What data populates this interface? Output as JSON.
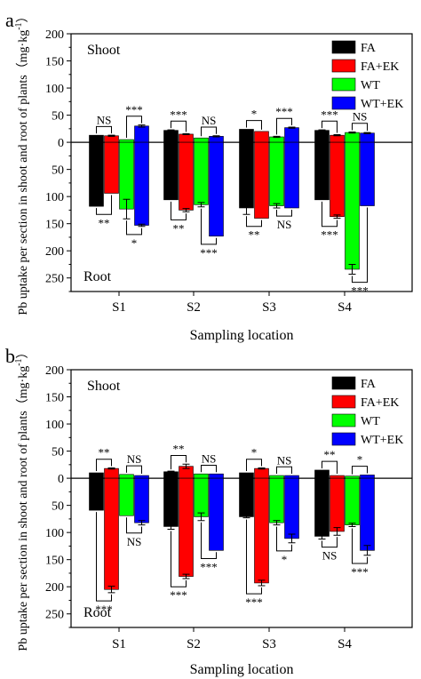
{
  "chart_data": [
    {
      "type": "bar",
      "panel_label": "a",
      "title": "",
      "xlabel": "Sampling location",
      "ylabel": "Pb uptake per section in shoot and root of plants（mg·kg",
      "ylabel_sup": "-1",
      "ylabel_tail": "）",
      "ylim": [
        -275,
        200
      ],
      "ytick_values": [
        200,
        150,
        100,
        50,
        0,
        -50,
        -100,
        -150,
        -200,
        -250
      ],
      "ytick_labels": [
        "200",
        "150",
        "100",
        "50",
        "0",
        "50",
        "100",
        "150",
        "200",
        "250"
      ],
      "shoot_label": "Shoot",
      "root_label": "Root",
      "legend_position": "top-right",
      "categories": [
        "S1",
        "S2",
        "S3",
        "S4"
      ],
      "series": [
        {
          "name": "FA",
          "color": "#000000",
          "shoot": [
            13,
            22,
            24,
            22
          ],
          "shoot_err": [
            0,
            1,
            0,
            1
          ],
          "root": [
            118,
            106,
            121,
            106
          ],
          "root_err": [
            0,
            0,
            12,
            0
          ]
        },
        {
          "name": "FA+EK",
          "color": "#ff0000",
          "shoot": [
            12,
            15,
            20,
            13
          ],
          "shoot_err": [
            1,
            1,
            0,
            1
          ],
          "root": [
            94,
            125,
            140,
            137
          ],
          "root_err": [
            0,
            3,
            0,
            3
          ]
        },
        {
          "name": "WT",
          "color": "#00ff00",
          "shoot": [
            5,
            8,
            10,
            18
          ],
          "shoot_err": [
            0,
            0,
            1,
            1
          ],
          "root": [
            123,
            115,
            117,
            234
          ],
          "root_err": [
            18,
            4,
            4,
            9
          ]
        },
        {
          "name": "WT+EK",
          "color": "#0000ff",
          "shoot": [
            30,
            11,
            27,
            17
          ],
          "shoot_err": [
            2,
            1,
            1,
            1
          ],
          "root": [
            153,
            173,
            121,
            117
          ],
          "root_err": [
            2,
            0,
            0,
            0
          ]
        }
      ],
      "shoot_significance": [
        {
          "category": "S1",
          "pair": [
            0,
            1
          ],
          "label": "NS"
        },
        {
          "category": "S1",
          "pair": [
            2,
            3
          ],
          "label": "***"
        },
        {
          "category": "S2",
          "pair": [
            0,
            1
          ],
          "label": "***"
        },
        {
          "category": "S2",
          "pair": [
            2,
            3
          ],
          "label": "NS"
        },
        {
          "category": "S3",
          "pair": [
            0,
            1
          ],
          "label": "*"
        },
        {
          "category": "S3",
          "pair": [
            2,
            3
          ],
          "label": "***"
        },
        {
          "category": "S4",
          "pair": [
            0,
            1
          ],
          "label": "***"
        },
        {
          "category": "S4",
          "pair": [
            2,
            3
          ],
          "label": "NS"
        }
      ],
      "root_significance": [
        {
          "category": "S1",
          "pair": [
            0,
            1
          ],
          "label": "**"
        },
        {
          "category": "S1",
          "pair": [
            2,
            3
          ],
          "label": "*"
        },
        {
          "category": "S2",
          "pair": [
            0,
            1
          ],
          "label": "**"
        },
        {
          "category": "S2",
          "pair": [
            2,
            3
          ],
          "label": "***"
        },
        {
          "category": "S3",
          "pair": [
            0,
            1
          ],
          "label": "**"
        },
        {
          "category": "S3",
          "pair": [
            2,
            3
          ],
          "label": "NS"
        },
        {
          "category": "S4",
          "pair": [
            0,
            1
          ],
          "label": "***"
        },
        {
          "category": "S4",
          "pair": [
            2,
            3
          ],
          "label": "***"
        }
      ]
    },
    {
      "type": "bar",
      "panel_label": "b",
      "title": "",
      "xlabel": "Sampling location",
      "ylabel": "Pb uptake per section in shoot and root of plants（mg·kg",
      "ylabel_sup": "-1",
      "ylabel_tail": "）",
      "ylim": [
        -275,
        200
      ],
      "ytick_values": [
        200,
        150,
        100,
        50,
        0,
        -50,
        -100,
        -150,
        -200,
        -250
      ],
      "ytick_labels": [
        "200",
        "150",
        "100",
        "50",
        "0",
        "50",
        "100",
        "150",
        "200",
        "250"
      ],
      "shoot_label": "Shoot",
      "root_label": "Root",
      "legend_position": "top-right",
      "categories": [
        "S1",
        "S2",
        "S3",
        "S4"
      ],
      "series": [
        {
          "name": "FA",
          "color": "#000000",
          "shoot": [
            10,
            12,
            10,
            15
          ],
          "shoot_err": [
            0,
            1,
            0,
            0
          ],
          "root": [
            59,
            89,
            71,
            107
          ],
          "root_err": [
            0,
            5,
            2,
            5
          ]
        },
        {
          "name": "FA+EK",
          "color": "#ff0000",
          "shoot": [
            18,
            22,
            18,
            5
          ],
          "shoot_err": [
            1,
            4,
            1,
            0
          ],
          "root": [
            205,
            181,
            193,
            98
          ],
          "root_err": [
            6,
            4,
            5,
            7
          ]
        },
        {
          "name": "WT",
          "color": "#00ff00",
          "shoot": [
            7,
            8,
            5,
            4
          ],
          "shoot_err": [
            0,
            0,
            0,
            0
          ],
          "root": [
            69,
            71,
            82,
            86
          ],
          "root_err": [
            0,
            7,
            4,
            3
          ]
        },
        {
          "name": "WT+EK",
          "color": "#0000ff",
          "shoot": [
            5,
            8,
            5,
            6
          ],
          "shoot_err": [
            0,
            0,
            0,
            0
          ],
          "root": [
            82,
            133,
            111,
            133
          ],
          "root_err": [
            4,
            0,
            8,
            9
          ]
        }
      ],
      "shoot_significance": [
        {
          "category": "S1",
          "pair": [
            0,
            1
          ],
          "label": "**"
        },
        {
          "category": "S1",
          "pair": [
            2,
            3
          ],
          "label": "NS"
        },
        {
          "category": "S2",
          "pair": [
            0,
            1
          ],
          "label": "**"
        },
        {
          "category": "S2",
          "pair": [
            2,
            3
          ],
          "label": "NS"
        },
        {
          "category": "S3",
          "pair": [
            0,
            1
          ],
          "label": "*"
        },
        {
          "category": "S3",
          "pair": [
            2,
            3
          ],
          "label": "NS"
        },
        {
          "category": "S4",
          "pair": [
            0,
            1
          ],
          "label": "**"
        },
        {
          "category": "S4",
          "pair": [
            2,
            3
          ],
          "label": "*"
        }
      ],
      "root_significance": [
        {
          "category": "S1",
          "pair": [
            0,
            1
          ],
          "label": "***"
        },
        {
          "category": "S1",
          "pair": [
            2,
            3
          ],
          "label": "NS"
        },
        {
          "category": "S2",
          "pair": [
            0,
            1
          ],
          "label": "***"
        },
        {
          "category": "S2",
          "pair": [
            2,
            3
          ],
          "label": "***"
        },
        {
          "category": "S3",
          "pair": [
            0,
            1
          ],
          "label": "***"
        },
        {
          "category": "S3",
          "pair": [
            2,
            3
          ],
          "label": "*"
        },
        {
          "category": "S4",
          "pair": [
            0,
            1
          ],
          "label": "NS"
        },
        {
          "category": "S4",
          "pair": [
            2,
            3
          ],
          "label": "***"
        }
      ]
    }
  ]
}
